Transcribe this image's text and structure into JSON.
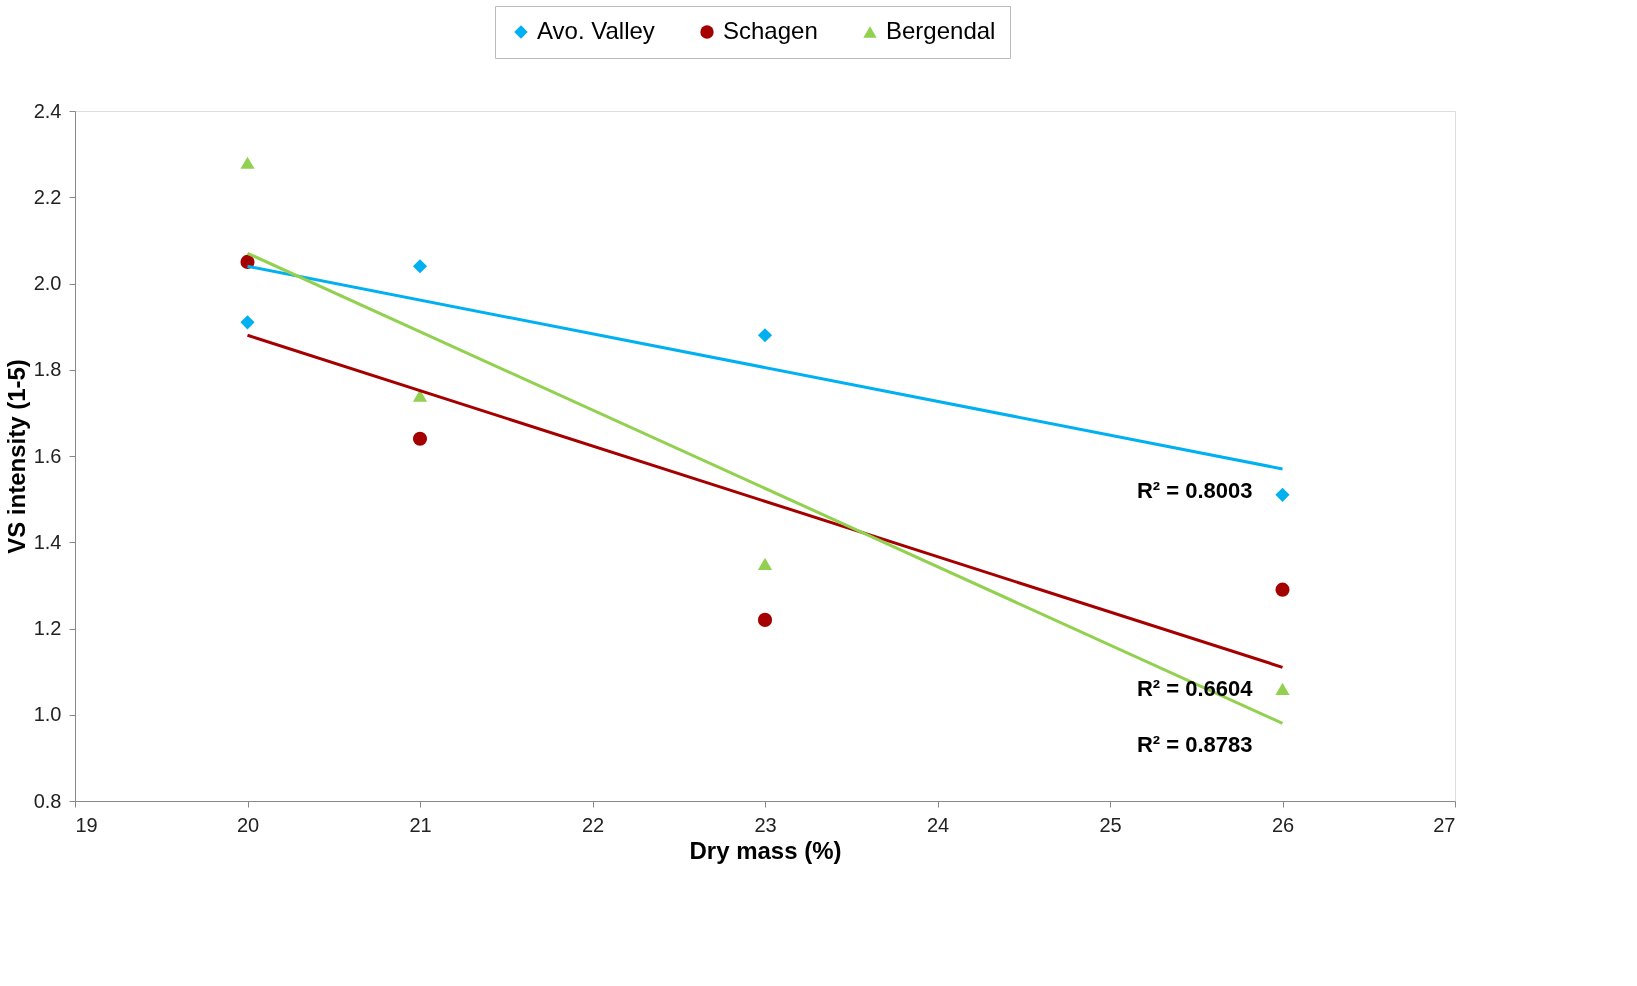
{
  "chart_data": {
    "type": "scatter",
    "xlabel": "Dry mass (%)",
    "ylabel": "VS intensity (1-5)",
    "xlim": [
      19,
      27
    ],
    "xticks": [
      19,
      20,
      21,
      22,
      23,
      24,
      25,
      26,
      27
    ],
    "ylim": [
      0.8,
      2.4
    ],
    "yticks": [
      {
        "value": 0.8,
        "label": "0.8"
      },
      {
        "value": 1.0,
        "label": "1.0"
      },
      {
        "value": 1.2,
        "label": "1.2"
      },
      {
        "value": 1.4,
        "label": "1.4"
      },
      {
        "value": 1.6,
        "label": "1.6"
      },
      {
        "value": 1.8,
        "label": "1.8"
      },
      {
        "value": 2.0,
        "label": "2.0"
      },
      {
        "value": 2.2,
        "label": "2.2"
      },
      {
        "value": 2.4,
        "label": "2.4"
      }
    ],
    "grid": false,
    "legend": "top",
    "series": [
      {
        "name": "Avo. Valley",
        "marker": "diamond",
        "color": "#00b0f0",
        "x": [
          20,
          21,
          23,
          26
        ],
        "values": [
          1.91,
          2.04,
          1.88,
          1.51
        ]
      },
      {
        "name": "Schagen",
        "marker": "circle",
        "color": "#a50000",
        "x": [
          20,
          21,
          23,
          26
        ],
        "values": [
          2.05,
          1.64,
          1.22,
          1.29
        ]
      },
      {
        "name": "Bergendal",
        "marker": "triangle",
        "color": "#92d050",
        "x": [
          20,
          21,
          23,
          26
        ],
        "values": [
          2.28,
          1.74,
          1.35,
          1.06
        ]
      },
      {
        "type": "line",
        "line_style": "solid",
        "color": "#00b0f0",
        "x": [
          20,
          26
        ],
        "values": [
          2.04,
          1.57
        ]
      },
      {
        "type": "line",
        "line_style": "solid",
        "color": "#a50000",
        "x": [
          20,
          26
        ],
        "values": [
          1.88,
          1.11
        ]
      },
      {
        "type": "line",
        "line_style": "solid",
        "color": "#92d050",
        "x": [
          20,
          26
        ],
        "values": [
          2.07,
          0.98
        ]
      }
    ],
    "annotations": [
      "R² = 0.8003",
      "R² = 0.6604",
      "R² = 0.8783"
    ]
  }
}
